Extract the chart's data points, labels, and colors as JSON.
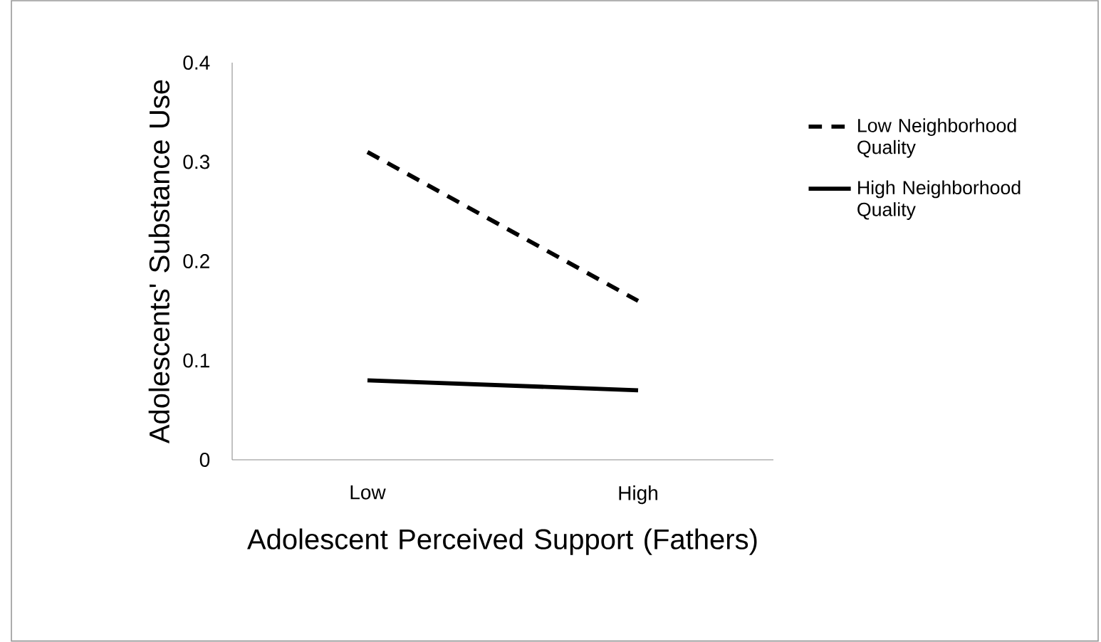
{
  "chart_data": {
    "type": "line",
    "xlabel": "Adolescent Perceived Support (Fathers)",
    "ylabel": "Adolescents' Substance Use",
    "categories": [
      "Low",
      "High"
    ],
    "series": [
      {
        "name": "Low Neighborhood Quality",
        "color": "#000000",
        "line_style": "dashed",
        "values": [
          0.31,
          0.16
        ]
      },
      {
        "name": "High Neighborhood Quality",
        "color": "#000000",
        "line_style": "solid",
        "values": [
          0.08,
          0.07
        ]
      }
    ],
    "ylim": [
      0,
      0.4
    ],
    "yticks": [
      0,
      0.1,
      0.2,
      0.3,
      0.4
    ],
    "legend": "right",
    "marker": "none"
  }
}
